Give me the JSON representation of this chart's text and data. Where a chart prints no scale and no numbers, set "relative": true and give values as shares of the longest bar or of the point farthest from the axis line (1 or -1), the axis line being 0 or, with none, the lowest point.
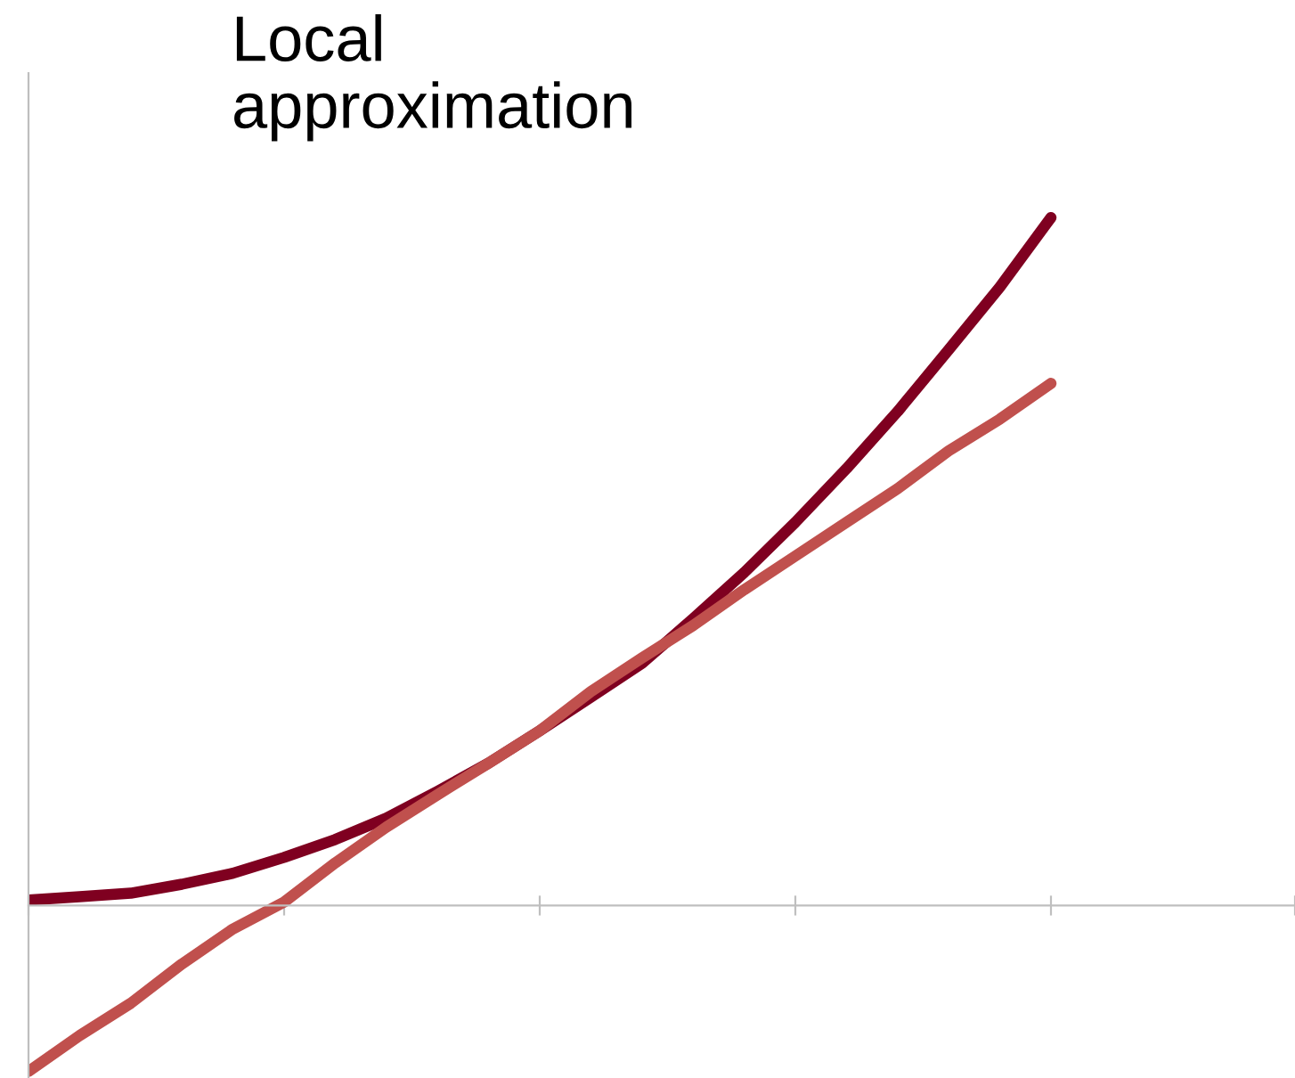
{
  "chart_data": {
    "type": "line",
    "title": "Local\napproximation",
    "relative": true,
    "categories": [
      null,
      null,
      null,
      null,
      null,
      null,
      null,
      null,
      null,
      null,
      null,
      null,
      null,
      null,
      null,
      null,
      null,
      null,
      null,
      null,
      null
    ],
    "series": [
      {
        "color": "#7f0020",
        "values": [
          0.008,
          0.013,
          0.018,
          0.031,
          0.047,
          0.07,
          0.096,
          0.127,
          0.166,
          0.207,
          0.254,
          0.303,
          0.352,
          0.417,
          0.484,
          0.557,
          0.635,
          0.718,
          0.808,
          0.899,
          1
        ]
      },
      {
        "color": "#c0504d",
        "values": [
          -0.241,
          -0.189,
          -0.142,
          -0.085,
          -0.034,
          0.005,
          0.062,
          0.114,
          0.161,
          0.207,
          0.254,
          0.311,
          0.36,
          0.407,
          0.459,
          0.508,
          0.557,
          0.606,
          0.661,
          0.707,
          0.759
        ]
      }
    ],
    "grid": false,
    "legend": false,
    "marker": "none",
    "line_style": "solid"
  }
}
